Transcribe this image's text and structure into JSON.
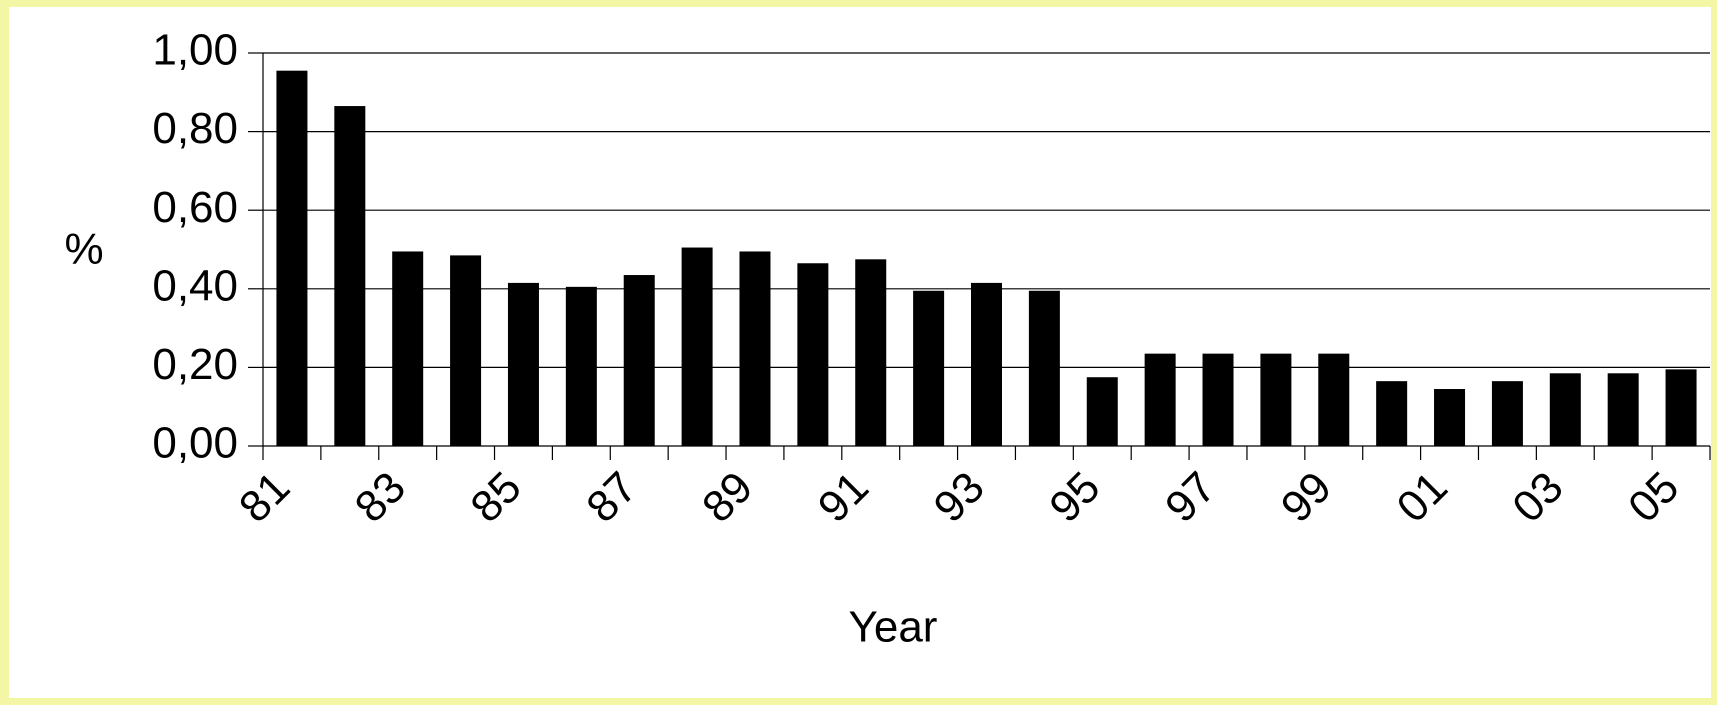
{
  "chart_data": {
    "type": "bar",
    "x_label": "Year",
    "y_label": "%",
    "categories": [
      "81",
      null,
      "83",
      null,
      "85",
      null,
      "87",
      null,
      "89",
      null,
      "91",
      null,
      "93",
      null,
      "95",
      null,
      "97",
      null,
      "99",
      null,
      "01",
      null,
      "03",
      null,
      "05"
    ],
    "values": [
      0.955,
      0.865,
      0.495,
      0.485,
      0.415,
      0.405,
      0.435,
      0.505,
      0.495,
      0.465,
      0.475,
      0.395,
      0.415,
      0.395,
      0.175,
      0.235,
      0.235,
      0.235,
      0.235,
      0.165,
      0.145,
      0.165,
      0.185,
      0.185,
      0.195
    ],
    "color": "#000000",
    "ylim": [
      0,
      1
    ],
    "yticks": [
      {
        "value": 0,
        "label": "0,00"
      },
      {
        "value": 0.2,
        "label": "0,20"
      },
      {
        "value": 0.4,
        "label": "0,40"
      },
      {
        "value": 0.6,
        "label": "0,60"
      },
      {
        "value": 0.8,
        "label": "0,80"
      },
      {
        "value": 1,
        "label": "1,00"
      }
    ],
    "grid": true
  }
}
